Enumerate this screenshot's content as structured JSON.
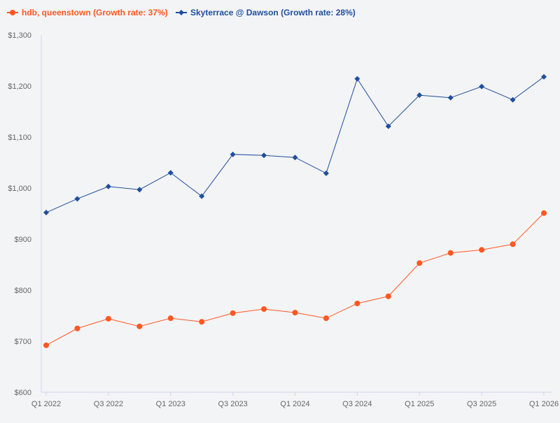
{
  "chart_data": {
    "type": "line",
    "title": "",
    "xlabel": "",
    "ylabel": "",
    "ylim": [
      600,
      1300
    ],
    "yticks": [
      600,
      700,
      800,
      900,
      1000,
      1100,
      1200,
      1300
    ],
    "ytick_labels": [
      "$600",
      "$700",
      "$800",
      "$900",
      "$1,000",
      "$1,100",
      "$1,200",
      "$1,300"
    ],
    "categories": [
      "Q1 2022",
      "Q2 2022",
      "Q3 2022",
      "Q4 2022",
      "Q1 2023",
      "Q2 2023",
      "Q3 2023",
      "Q4 2023",
      "Q1 2024",
      "Q2 2024",
      "Q3 2024",
      "Q4 2024",
      "Q1 2025",
      "Q2 2025",
      "Q3 2025",
      "Q4 2025",
      "Q1 2026"
    ],
    "xtick_labels": [
      "Q1 2022",
      "",
      "Q3 2022",
      "",
      "Q1 2023",
      "",
      "Q3 2023",
      "",
      "Q1 2024",
      "",
      "Q3 2024",
      "",
      "Q1 2025",
      "",
      "Q3 2025",
      "",
      "Q1 2026"
    ],
    "grid": false,
    "legend_placement": "top-left",
    "series": [
      {
        "name": "hdb, queenstown (Growth rate: 37%)",
        "color": "#ff5722",
        "marker": "circle",
        "values": [
          692,
          725,
          744,
          729,
          745,
          738,
          755,
          763,
          756,
          745,
          774,
          788,
          853,
          873,
          879,
          890,
          951
        ]
      },
      {
        "name": "Skyterrace @ Dawson (Growth rate: 28%)",
        "color": "#1f4e9c",
        "marker": "diamond",
        "values": [
          952,
          979,
          1003,
          997,
          1030,
          984,
          1066,
          1064,
          1060,
          1029,
          1214,
          1121,
          1182,
          1177,
          1199,
          1173,
          1218
        ]
      }
    ]
  }
}
